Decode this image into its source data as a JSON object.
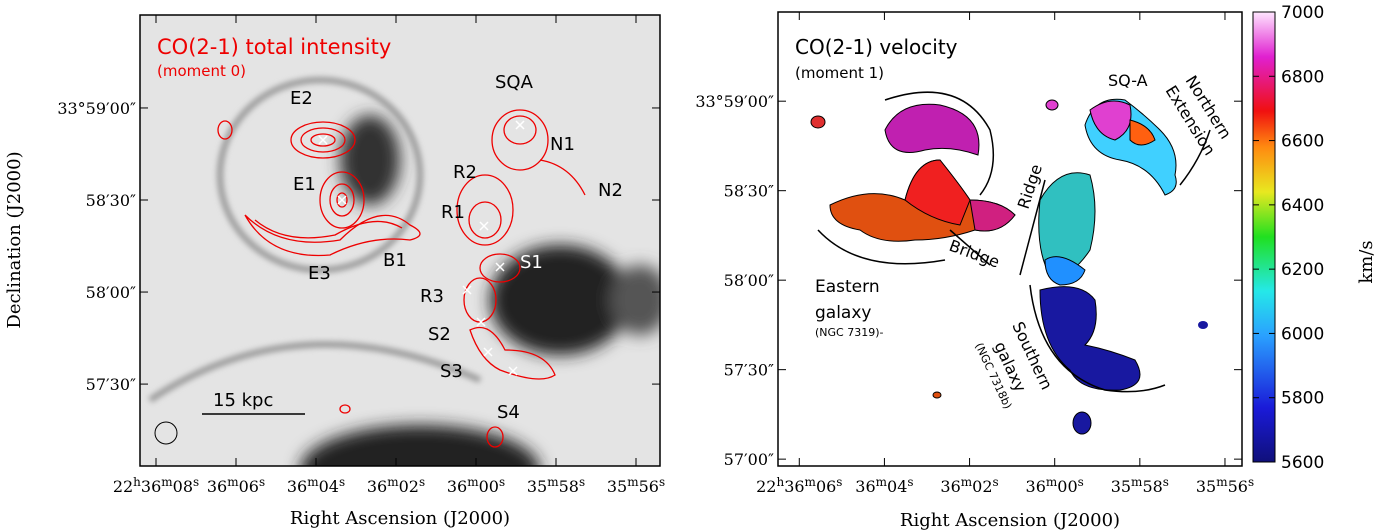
{
  "chart_data": [
    {
      "type": "image",
      "xlabel": "Right Ascension (J2000)",
      "ylabel": "Declination (J2000)",
      "xlim": [
        2168.4,
        2155.4
      ],
      "xticks": [
        {
          "value": 2168,
          "label": "22h36m08s"
        },
        {
          "value": 2166,
          "label": "36m06s"
        },
        {
          "value": 2164,
          "label": "36m04s"
        },
        {
          "value": 2162,
          "label": "36m02s"
        },
        {
          "value": 2160,
          "label": "36m00s"
        },
        {
          "value": 2158,
          "label": "35m58s"
        },
        {
          "value": 2156,
          "label": "35m56s"
        }
      ],
      "ylim": [
        3.3,
        150.3
      ],
      "yticks": [
        {
          "value": 120,
          "label": "33°59′00″"
        },
        {
          "value": 90,
          "label": "58′30″"
        },
        {
          "value": 60,
          "label": "58′00″"
        },
        {
          "value": 30,
          "label": "57′30″"
        }
      ],
      "annotations": [
        "CO(2-1) total intensity",
        "(moment 0)",
        "E2",
        "SQA",
        "N1",
        "N2",
        "R2",
        "E1",
        "R1",
        "B1",
        "E3",
        "S1",
        "R3",
        "S2",
        "S3",
        "S4",
        "15 kpc"
      ]
    },
    {
      "type": "image",
      "xlabel": "Right Ascension (J2000)",
      "xlim": [
        2166.5,
        2155.6
      ],
      "xticks": [
        {
          "value": 2166,
          "label": "22h36m06s"
        },
        {
          "value": 2164,
          "label": "36m04s"
        },
        {
          "value": 2162,
          "label": "36m02s"
        },
        {
          "value": 2160,
          "label": "36m00s"
        },
        {
          "value": 2158,
          "label": "35m58s"
        },
        {
          "value": 2156,
          "label": "35m56s"
        }
      ],
      "ylim": [
        -2.3,
        149.9
      ],
      "yticks": [
        {
          "value": 120,
          "label": "33°59′00″"
        },
        {
          "value": 90,
          "label": "58′30″"
        },
        {
          "value": 60,
          "label": "58′00″"
        },
        {
          "value": 30,
          "label": "57′30″"
        },
        {
          "value": 0,
          "label": "57′00″"
        }
      ],
      "annotations": [
        "CO(2-1) velocity",
        "(moment 1)",
        "SQ-A",
        "Northern",
        "Extension",
        "Ridge",
        "Bridge",
        "Eastern",
        "galaxy",
        "(NGC 7319)-",
        "Southern",
        "galaxy",
        "(NGC 7318b)"
      ],
      "colorbar_label": "km/s",
      "clim": [
        5600,
        7000
      ],
      "cticks": [
        5600,
        5800,
        6000,
        6200,
        6400,
        6600,
        6800,
        7000
      ]
    }
  ]
}
